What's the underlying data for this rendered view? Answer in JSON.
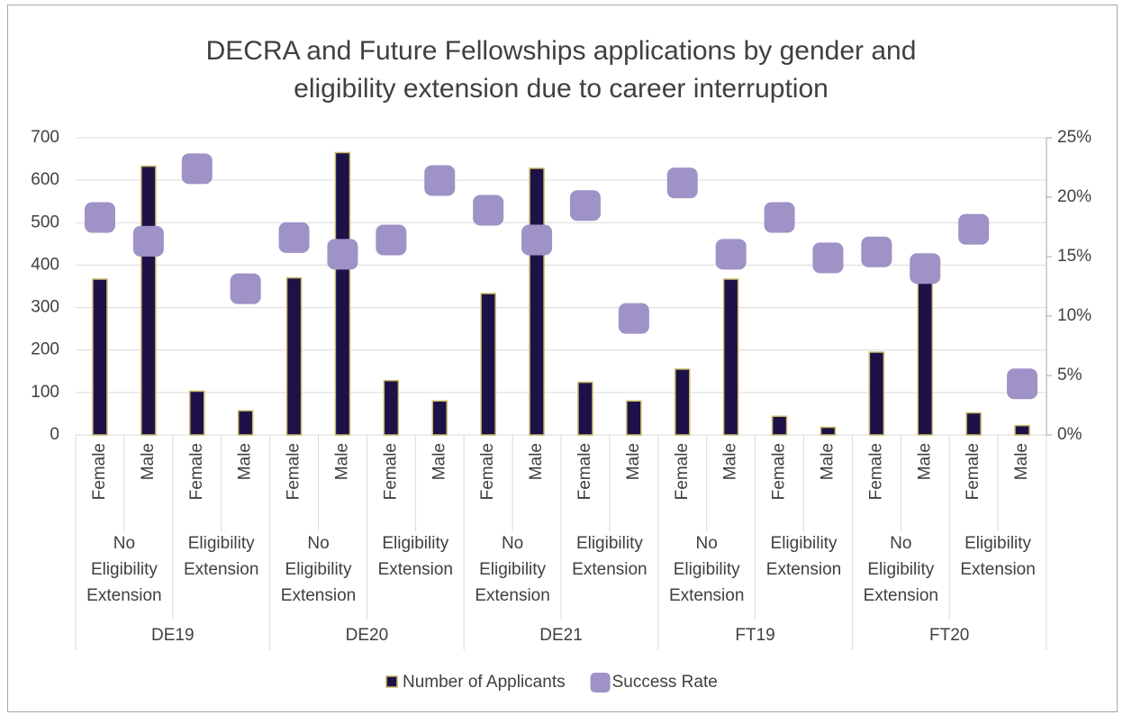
{
  "chart_data": {
    "type": "bar_scatter",
    "title": [
      "DECRA and Future Fellowships applications by gender and",
      "eligibility extension due to career interruption"
    ],
    "categories": [
      "Female",
      "Male",
      "Female",
      "Male",
      "Female",
      "Male",
      "Female",
      "Male",
      "Female",
      "Male",
      "Female",
      "Male",
      "Female",
      "Male",
      "Female",
      "Male",
      "Female",
      "Male",
      "Female",
      "Male"
    ],
    "subgroups": [
      "No Eligibility Extension",
      "Eligibility Extension",
      "No Eligibility Extension",
      "Eligibility Extension",
      "No Eligibility Extension",
      "Eligibility Extension",
      "No Eligibility Extension",
      "Eligibility Extension",
      "No Eligibility Extension",
      "Eligibility Extension"
    ],
    "groups": [
      "DE19",
      "DE20",
      "DE21",
      "FT19",
      "FT20"
    ],
    "series": [
      {
        "name": "Number of Applicants",
        "type": "bar",
        "color": "#1c1248",
        "edge": "#c9b96a",
        "values": [
          367,
          633,
          103,
          57,
          370,
          665,
          128,
          80,
          333,
          628,
          124,
          80,
          155,
          367,
          44,
          18,
          195,
          380,
          52,
          22
        ]
      },
      {
        "name": "Success Rate",
        "type": "scatter",
        "axis": "y2",
        "color": "#9e92c7",
        "values": [
          18.3,
          16.3,
          22.4,
          12.3,
          16.6,
          15.2,
          16.4,
          21.4,
          18.9,
          16.4,
          19.3,
          9.8,
          21.2,
          15.2,
          18.3,
          14.9,
          15.4,
          14.0,
          17.3,
          4.3
        ]
      }
    ],
    "ylim": [
      0,
      700
    ],
    "yticks": [
      0,
      100,
      200,
      300,
      400,
      500,
      600,
      700
    ],
    "y2lim": [
      0,
      25
    ],
    "y2ticks": [
      {
        "value": 0,
        "label": "0%"
      },
      {
        "value": 5,
        "label": "5%"
      },
      {
        "value": 10,
        "label": "10%"
      },
      {
        "value": 15,
        "label": "15%"
      },
      {
        "value": 20,
        "label": "20%"
      },
      {
        "value": 25,
        "label": "25%"
      }
    ],
    "grid": true,
    "legend": "bottom"
  }
}
